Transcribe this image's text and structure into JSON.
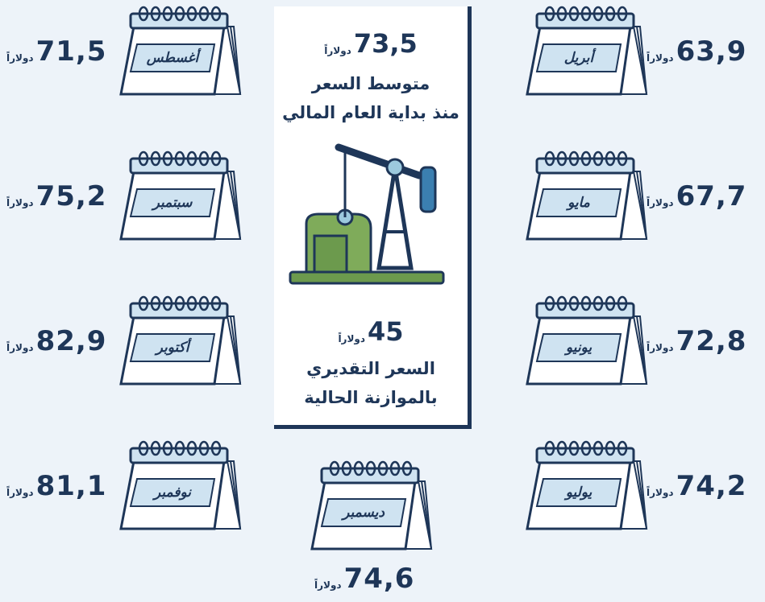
{
  "center": {
    "avg_value": "73,5",
    "avg_unit": "دولاراً",
    "avg_label_1": "متوسط السعر",
    "avg_label_2": "منذ بداية العام المالي",
    "budget_value": "45",
    "budget_unit": "دولاراً",
    "budget_label_1": "السعر التقديري",
    "budget_label_2": "بالموازنة الحالية"
  },
  "months": [
    {
      "name": "أبريل",
      "price": "63,9",
      "unit": "دولاراً"
    },
    {
      "name": "مايو",
      "price": "67,7",
      "unit": "دولاراً"
    },
    {
      "name": "يونيو",
      "price": "72,8",
      "unit": "دولاراً"
    },
    {
      "name": "يوليو",
      "price": "74,2",
      "unit": "دولاراً"
    },
    {
      "name": "أغسطس",
      "price": "71,5",
      "unit": "دولاراً"
    },
    {
      "name": "سبتمبر",
      "price": "75,2",
      "unit": "دولاراً"
    },
    {
      "name": "أكتوبر",
      "price": "82,9",
      "unit": "دولاراً"
    },
    {
      "name": "نوفمبر",
      "price": "81,1",
      "unit": "دولاراً"
    },
    {
      "name": "ديسمبر",
      "price": "74,6",
      "unit": "دولاراً"
    }
  ]
}
